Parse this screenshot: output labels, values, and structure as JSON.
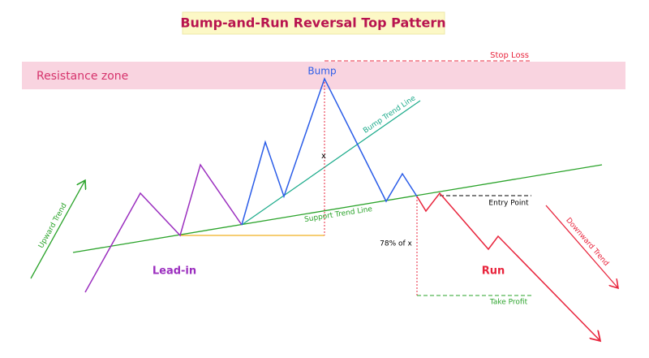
{
  "title": "Bump-and-Run Reversal Top Pattern",
  "labels": {
    "stop_loss": "Stop Loss",
    "resistance_zone": "Resistance zone",
    "bump": "Bump",
    "bump_trend_line": "Bump Trend Line",
    "x": "x",
    "upward_trend": "Upward Trend",
    "support_trend_line": "Support Trend Line",
    "entry_point": "Entry Point",
    "ratio": "78% of x",
    "downward_trend": "Downward Trend",
    "lead_in": "Lead-in",
    "run": "Run",
    "take_profit": "Take Profit"
  }
}
